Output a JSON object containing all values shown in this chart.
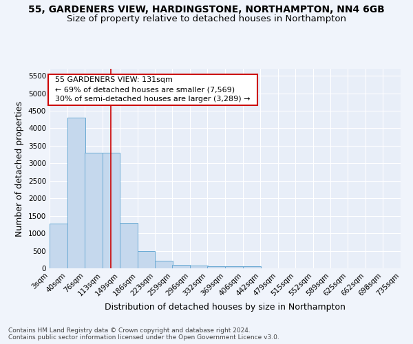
{
  "title": "55, GARDENERS VIEW, HARDINGSTONE, NORTHAMPTON, NN4 6GB",
  "subtitle": "Size of property relative to detached houses in Northampton",
  "xlabel": "Distribution of detached houses by size in Northampton",
  "ylabel": "Number of detached properties",
  "footnote1": "Contains HM Land Registry data © Crown copyright and database right 2024.",
  "footnote2": "Contains public sector information licensed under the Open Government Licence v3.0.",
  "annotation_title": "55 GARDENERS VIEW: 131sqm",
  "annotation_line1": "← 69% of detached houses are smaller (7,569)",
  "annotation_line2": "30% of semi-detached houses are larger (3,289) →",
  "bar_left_edges": [
    3,
    40,
    76,
    113,
    149,
    186,
    223,
    259,
    296,
    332,
    369,
    406,
    442,
    479,
    515,
    552,
    589,
    625,
    662,
    698
  ],
  "bar_heights": [
    1270,
    4300,
    3300,
    3300,
    1290,
    490,
    215,
    100,
    80,
    55,
    55,
    55,
    0,
    0,
    0,
    0,
    0,
    0,
    0,
    0
  ],
  "bin_width": 37,
  "tick_labels": [
    "3sqm",
    "40sqm",
    "76sqm",
    "113sqm",
    "149sqm",
    "186sqm",
    "223sqm",
    "259sqm",
    "296sqm",
    "332sqm",
    "369sqm",
    "406sqm",
    "442sqm",
    "479sqm",
    "515sqm",
    "552sqm",
    "589sqm",
    "625sqm",
    "662sqm",
    "698sqm",
    "735sqm"
  ],
  "ylim": [
    0,
    5700
  ],
  "yticks": [
    0,
    500,
    1000,
    1500,
    2000,
    2500,
    3000,
    3500,
    4000,
    4500,
    5000,
    5500
  ],
  "bar_color": "#c5d8ed",
  "bar_edge_color": "#6aaad4",
  "vline_x": 131,
  "vline_color": "#cc0000",
  "annotation_box_color": "#ffffff",
  "annotation_box_edge": "#cc0000",
  "fig_background_color": "#f0f4fb",
  "axes_background_color": "#e8eef8",
  "grid_color": "#ffffff",
  "title_fontsize": 10,
  "subtitle_fontsize": 9.5,
  "ylabel_fontsize": 9,
  "xlabel_fontsize": 9,
  "tick_fontsize": 7.5,
  "annotation_fontsize": 8,
  "footnote_fontsize": 6.5
}
